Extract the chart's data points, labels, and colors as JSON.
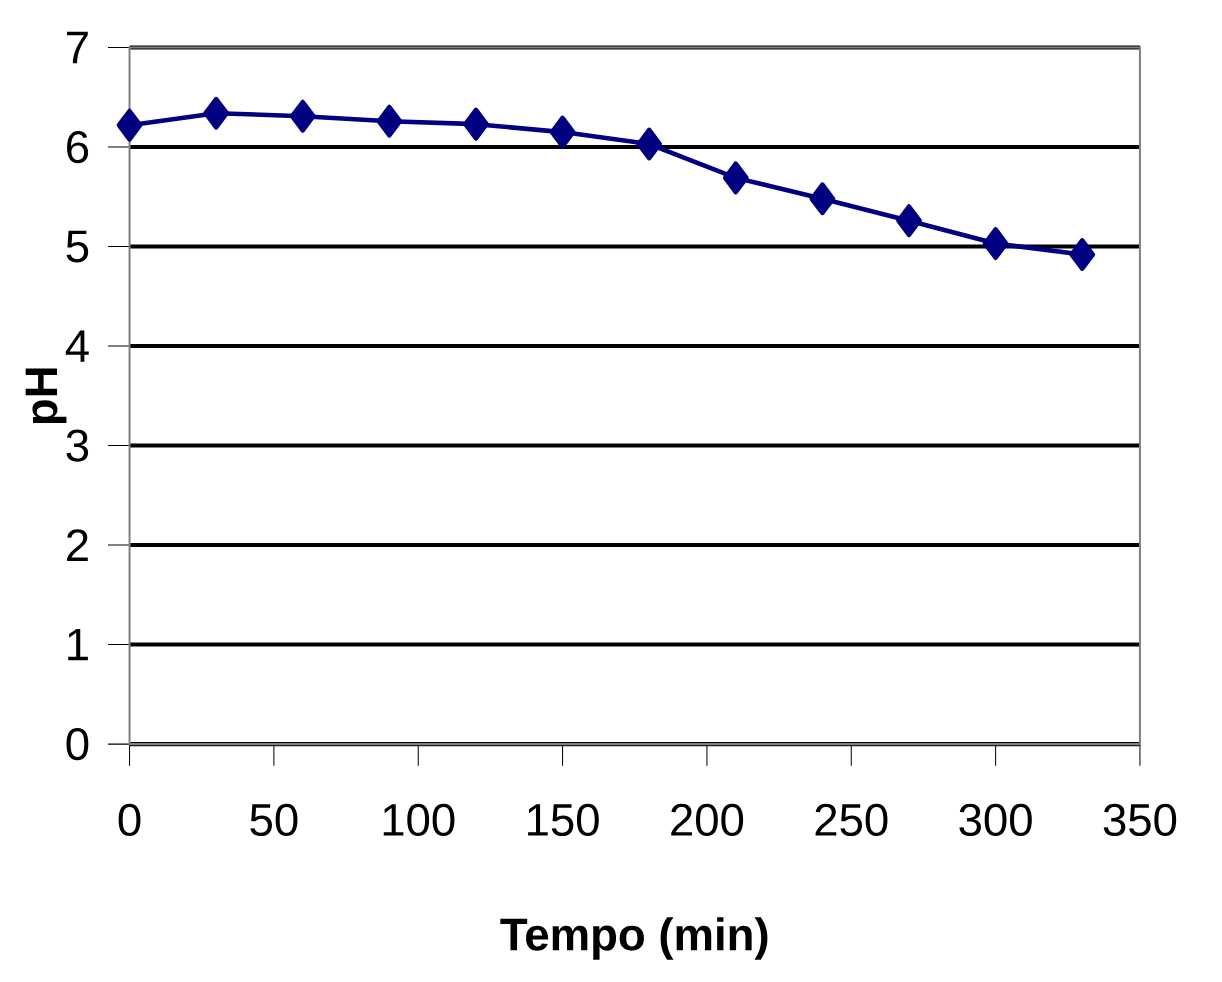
{
  "chart_data": {
    "type": "line",
    "xlabel": "Tempo (min)",
    "ylabel": "pH",
    "x": [
      0,
      30,
      60,
      90,
      120,
      150,
      180,
      210,
      240,
      270,
      300,
      330
    ],
    "series": [
      {
        "color": "#000080",
        "values": [
          6.22,
          6.34,
          6.31,
          6.26,
          6.23,
          6.15,
          6.03,
          5.69,
          5.48,
          5.26,
          5.03,
          4.92
        ]
      }
    ],
    "xlim": [
      0,
      350
    ],
    "xticks": [
      0,
      50,
      100,
      150,
      200,
      250,
      300,
      350
    ],
    "ylim": [
      0,
      7
    ],
    "yticks": [
      0,
      1,
      2,
      3,
      4,
      5,
      6,
      7
    ],
    "grid": "y",
    "marker": "diamond"
  }
}
